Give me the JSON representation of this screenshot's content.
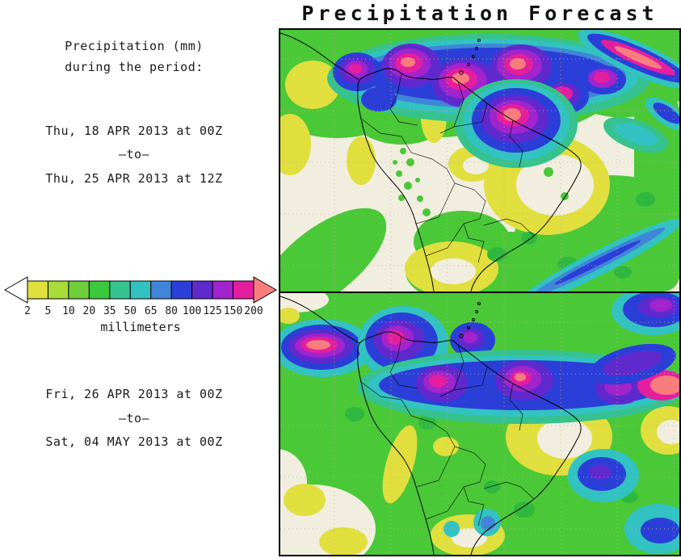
{
  "title": "Precipitation Forecast",
  "sidebar": {
    "heading1": "Precipitation (mm)",
    "heading2": "during the period:",
    "period_top": {
      "start": "Thu, 18 APR 2013 at 00Z",
      "separator": "–to–",
      "end": "Thu, 25 APR 2013 at 12Z"
    },
    "period_bottom": {
      "start": "Fri, 26 APR 2013 at 00Z",
      "separator": "–to–",
      "end": "Sat, 04 MAY 2013 at 00Z"
    }
  },
  "colorbar": {
    "unit": "millimeters",
    "ticks": [
      "2",
      "5",
      "10",
      "20",
      "35",
      "50",
      "65",
      "80",
      "100",
      "125",
      "150",
      "200"
    ],
    "segment_colors": [
      "#e0df3e",
      "#a8dc38",
      "#6ecf3a",
      "#3cc83c",
      "#36c28e",
      "#32c2c2",
      "#3f86d8",
      "#2b3fd8",
      "#6029ce",
      "#a124cc",
      "#e41f9f"
    ],
    "under_arrow_color": "#ffffff",
    "over_arrow_color": "#fa7d7d"
  }
}
